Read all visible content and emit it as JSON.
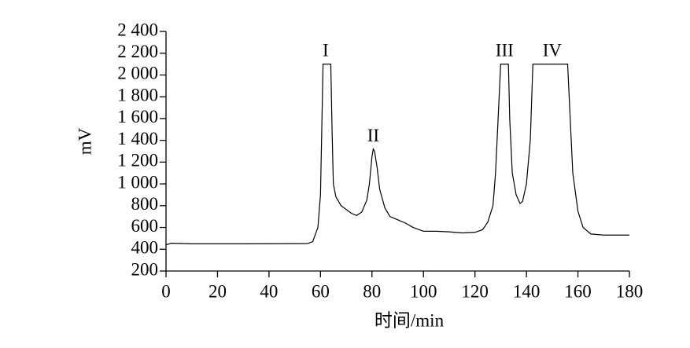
{
  "chart_data": {
    "type": "line",
    "xlabel": "时间/min",
    "ylabel": "mV",
    "xlim": [
      0,
      180
    ],
    "xticks": [
      0,
      20,
      40,
      60,
      80,
      100,
      120,
      140,
      160,
      180
    ],
    "ylim": [
      200,
      2400
    ],
    "yticks": [
      {
        "value": 200,
        "label": "200"
      },
      {
        "value": 400,
        "label": "400"
      },
      {
        "value": 600,
        "label": "600"
      },
      {
        "value": 800,
        "label": "800"
      },
      {
        "value": 1000,
        "label": "1 000"
      },
      {
        "value": 1200,
        "label": "1 200"
      },
      {
        "value": 1400,
        "label": "1 400"
      },
      {
        "value": 1600,
        "label": "1 600"
      },
      {
        "value": 1800,
        "label": "1 800"
      },
      {
        "value": 2000,
        "label": "2 000"
      },
      {
        "value": 2200,
        "label": "2 200"
      },
      {
        "value": 2400,
        "label": "2 400"
      }
    ],
    "color": "#000000",
    "x": [
      0,
      2,
      10,
      30,
      55,
      57,
      59,
      60,
      61,
      64,
      64.5,
      65,
      66,
      68,
      72,
      74,
      76,
      78,
      79,
      80,
      80.5,
      81,
      82,
      83,
      85,
      87,
      90,
      93,
      96,
      100,
      105,
      110,
      115,
      120,
      123,
      125,
      127,
      128,
      129,
      130,
      133,
      133.5,
      134.5,
      136,
      137.5,
      138.5,
      140,
      141.5,
      142.5,
      156,
      157,
      158,
      160,
      162,
      165,
      170,
      180
    ],
    "values": [
      440,
      455,
      450,
      450,
      452,
      470,
      600,
      900,
      2100,
      2100,
      1500,
      1000,
      880,
      800,
      730,
      710,
      740,
      850,
      1000,
      1250,
      1320,
      1300,
      1150,
      950,
      780,
      700,
      670,
      640,
      600,
      565,
      565,
      560,
      550,
      555,
      580,
      650,
      800,
      1100,
      1600,
      2100,
      2100,
      1600,
      1100,
      900,
      820,
      840,
      1000,
      1400,
      2100,
      2100,
      1600,
      1100,
      750,
      600,
      540,
      530,
      530
    ],
    "annotations": [
      {
        "text": "I",
        "x": 62,
        "y": 2210
      },
      {
        "text": "II",
        "x": 80.5,
        "y": 1430
      },
      {
        "text": "III",
        "x": 131.5,
        "y": 2210
      },
      {
        "text": "IV",
        "x": 150,
        "y": 2210
      }
    ]
  }
}
